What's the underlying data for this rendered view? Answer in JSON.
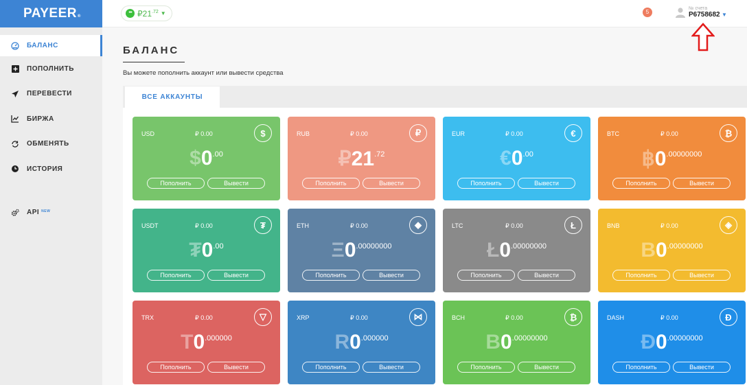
{
  "logo": {
    "text": "PAYEER",
    "mark": "®"
  },
  "sidebar": {
    "items": [
      {
        "id": "balance",
        "label": "БАЛАНС",
        "icon": "dashboard-icon"
      },
      {
        "id": "deposit",
        "label": "ПОПОЛНИТЬ",
        "icon": "plus-square-icon"
      },
      {
        "id": "transfer",
        "label": "ПЕРЕВЕСТИ",
        "icon": "paper-plane-icon"
      },
      {
        "id": "exchange",
        "label": "БИРЖА",
        "icon": "chart-icon"
      },
      {
        "id": "swap",
        "label": "ОБМЕНЯТЬ",
        "icon": "swap-icon"
      },
      {
        "id": "history",
        "label": "ИСТОРИЯ",
        "icon": "clock-icon"
      }
    ],
    "api": {
      "label": "API",
      "badge": "NEW",
      "icon": "gears-icon"
    }
  },
  "header": {
    "wallet": {
      "dot": "•••",
      "symbol": "₽",
      "int": "21",
      "frac": ".72"
    },
    "notifications": "5",
    "account_label": "№ счета",
    "account_number": "P6758682"
  },
  "main": {
    "title": "БАЛАНС",
    "subtitle": "Вы можете пополнить аккаунт или вывести средства",
    "tab": "ВСЕ АККАУНТЫ",
    "deposit_label": "Пополнить",
    "withdraw_label": "Вывести"
  },
  "cards": [
    {
      "cur": "USD",
      "small": "₽ 0.00",
      "icon": "$",
      "sym": "$",
      "int": "0",
      "frac": ".00",
      "color": "#78c56b"
    },
    {
      "cur": "RUB",
      "small": "₽ 0.00",
      "icon": "₽",
      "sym": "₽",
      "int": "21",
      "frac": ".72",
      "color": "#ef9882"
    },
    {
      "cur": "EUR",
      "small": "₽ 0.00",
      "icon": "€",
      "sym": "€",
      "int": "0",
      "frac": ".00",
      "color": "#3dbdef"
    },
    {
      "cur": "BTC",
      "small": "₽ 0.00",
      "icon": "₿",
      "sym": "฿",
      "int": "0",
      "frac": ".00000000",
      "color": "#f18c3d"
    },
    {
      "cur": "USDT",
      "small": "₽ 0.00",
      "icon": "₮",
      "sym": "₮",
      "int": "0",
      "frac": ".00",
      "color": "#43b48a"
    },
    {
      "cur": "ETH",
      "small": "₽ 0.00",
      "icon": "◆",
      "sym": "Ξ",
      "int": "0",
      "frac": ".00000000",
      "color": "#5f82a4"
    },
    {
      "cur": "LTC",
      "small": "₽ 0.00",
      "icon": "Ł",
      "sym": "Ł",
      "int": "0",
      "frac": ".00000000",
      "color": "#8a8a8a"
    },
    {
      "cur": "BNB",
      "small": "₽ 0.00",
      "icon": "◈",
      "sym": "B",
      "int": "0",
      "frac": ".00000000",
      "color": "#f3bb2f"
    },
    {
      "cur": "TRX",
      "small": "₽ 0.00",
      "icon": "▽",
      "sym": "T",
      "int": "0",
      "frac": ".000000",
      "color": "#dc6461"
    },
    {
      "cur": "XRP",
      "small": "₽ 0.00",
      "icon": "⋈",
      "sym": "R",
      "int": "0",
      "frac": ".000000",
      "color": "#3e86c4"
    },
    {
      "cur": "BCH",
      "small": "₽ 0.00",
      "icon": "₿",
      "sym": "B",
      "int": "0",
      "frac": ".00000000",
      "color": "#6bc356"
    },
    {
      "cur": "DASH",
      "small": "₽ 0.00",
      "icon": "Đ",
      "sym": "Đ",
      "int": "0",
      "frac": ".00000000",
      "color": "#1f8ee8"
    }
  ]
}
